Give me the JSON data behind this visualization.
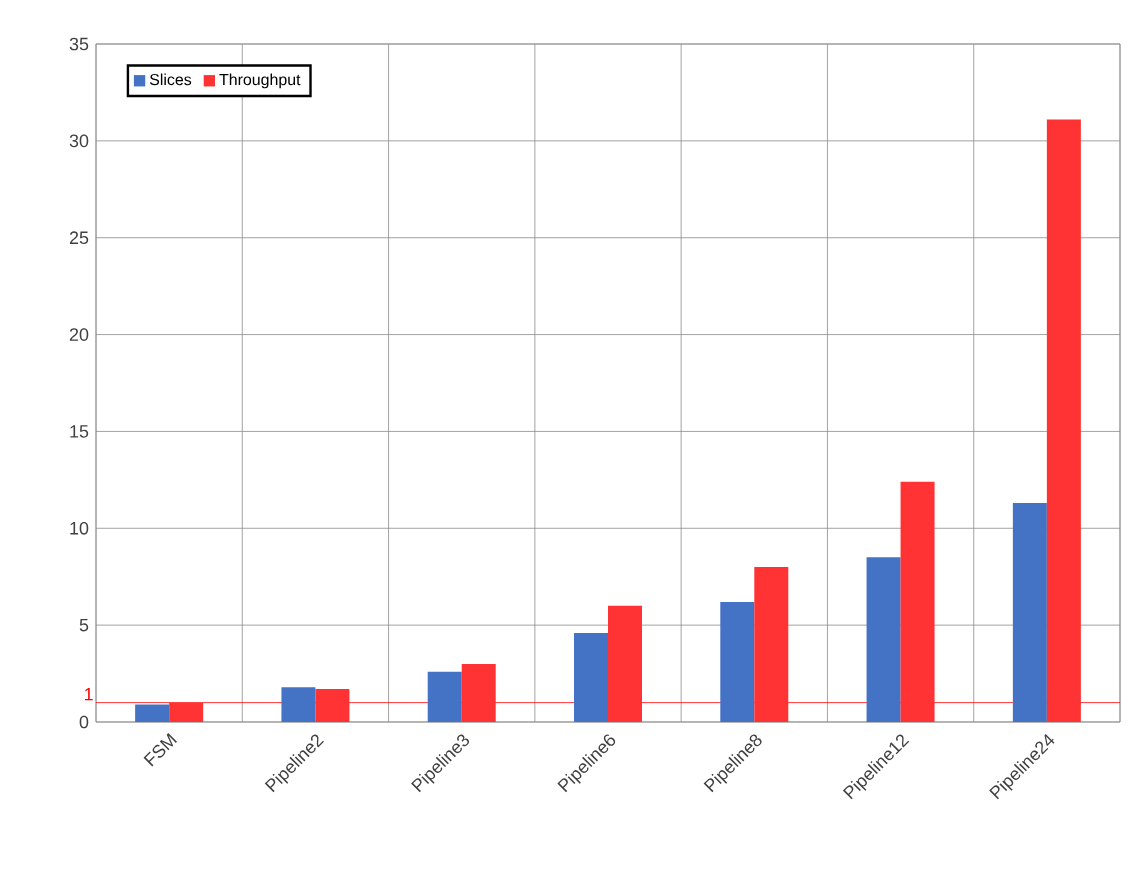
{
  "chart_data": {
    "type": "bar",
    "categories": [
      "FSM",
      "Pipeline2",
      "Pipeline3",
      "Pipeline6",
      "Pipeline8",
      "Pipeline12",
      "Pipeline24"
    ],
    "series": [
      {
        "name": "Slices",
        "color": "#4472c4",
        "values": [
          0.9,
          1.8,
          2.6,
          4.6,
          6.2,
          8.5,
          11.3
        ]
      },
      {
        "name": "Throughput",
        "color": "#ff3333",
        "values": [
          1.0,
          1.7,
          3.0,
          6.0,
          8.0,
          12.4,
          31.1
        ]
      }
    ],
    "ylim": [
      0,
      35
    ],
    "yticks": [
      0,
      5,
      10,
      15,
      20,
      25,
      30,
      35
    ],
    "grid": true,
    "legend": "top left",
    "ref_lines": [
      {
        "axis": "y",
        "value": 1,
        "label": "1",
        "color": "#ff0000"
      }
    ]
  }
}
